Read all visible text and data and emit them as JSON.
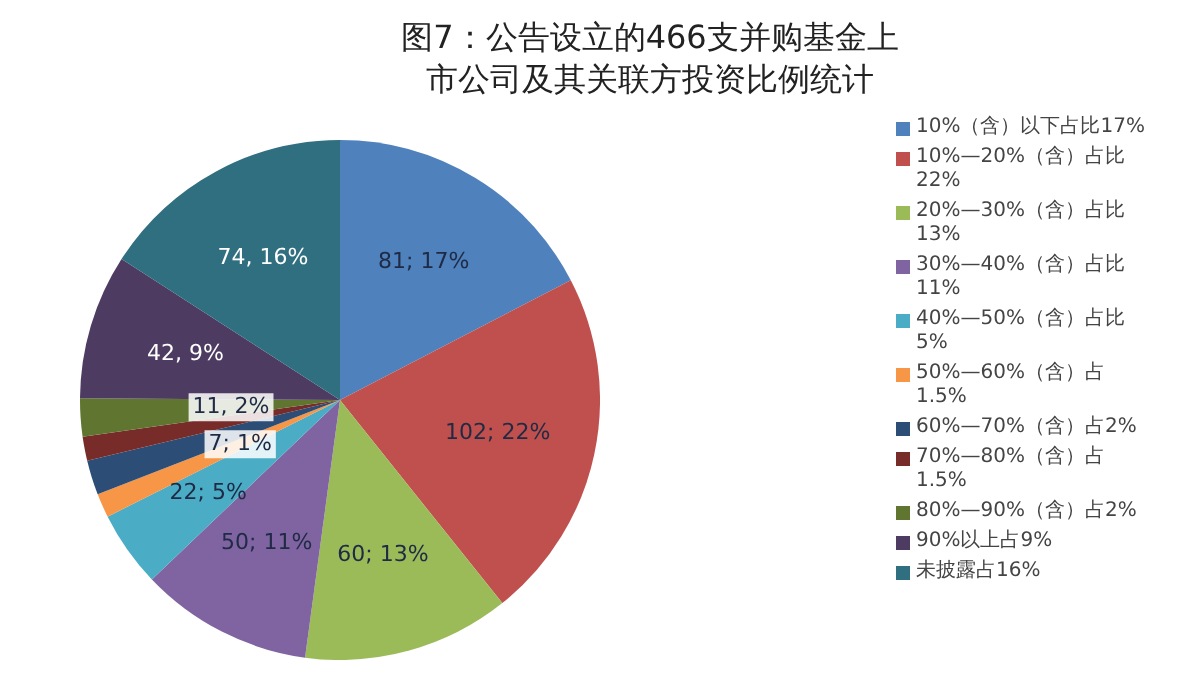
{
  "chart_data": {
    "type": "pie",
    "title": "图7：公告设立的466支并购基金上市公司及其关联方投资比例统计",
    "categories": [
      "10%（含）以下占比17%",
      "10%—20%（含）占比22%",
      "20%—30%（含）占比13%",
      "30%—40%（含）占比11%",
      "40%—50%（含）占比5%",
      "50%—60%（含）占1.5%",
      "60%—70%（含）占2%",
      "70%—80%（含）占1.5%",
      "80%—90%（含）占2%",
      "90%以上占9%",
      "未披露占16%"
    ],
    "values": [
      81,
      102,
      60,
      50,
      22,
      7,
      10,
      7,
      11,
      42,
      74
    ],
    "colors": [
      "#4f81bd",
      "#c0504d",
      "#9bbb59",
      "#8064a2",
      "#4bacc6",
      "#f79646",
      "#2c4d75",
      "#772c2a",
      "#5f7530",
      "#4d3b62",
      "#2f6f80"
    ],
    "value_labels": [
      "81; 17%",
      "102; 22%",
      "60; 13%",
      "50; 11%",
      "22; 5%",
      "7; 1%",
      null,
      null,
      "11, 2%",
      "42, 9%",
      "74, 16%"
    ],
    "legend": "right"
  }
}
